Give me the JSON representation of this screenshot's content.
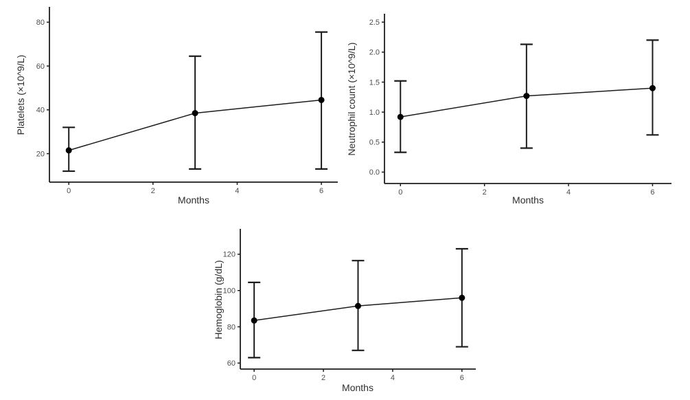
{
  "style": {
    "background": "#ffffff",
    "axis_color": "#1c1c1c",
    "line_color": "#1c1c1c",
    "errorbar_color": "#1c1c1c",
    "point_color": "#000000",
    "tick_label_color": "#4d4d4d",
    "axis_title_color": "#2e2e2e"
  },
  "chart_data": [
    {
      "id": "platelets",
      "type": "line",
      "title": "",
      "xlabel": "Months",
      "ylabel": "Platelets (×10^9/L)",
      "grid": false,
      "legend": "none",
      "errorbars": true,
      "x": [
        0,
        3,
        6
      ],
      "series": [
        {
          "name": "mean",
          "values": [
            21.5,
            38.5,
            44.5
          ]
        },
        {
          "name": "lower",
          "values": [
            12,
            13,
            13
          ]
        },
        {
          "name": "upper",
          "values": [
            32,
            64.5,
            75.5
          ]
        }
      ],
      "xticks": {
        "values": [
          0,
          2,
          4,
          6
        ],
        "labels": [
          "0",
          "2",
          "4",
          "6"
        ]
      },
      "yticks": {
        "values": [
          20,
          40,
          60,
          80
        ],
        "labels": [
          "20",
          "40",
          "60",
          "80"
        ]
      },
      "xlim": [
        -0.46,
        6.39
      ],
      "ylim": [
        7,
        87
      ]
    },
    {
      "id": "neutrophil-count",
      "type": "line",
      "title": "",
      "xlabel": "Months",
      "ylabel": "Neutrophil count (×10^9/L)",
      "grid": false,
      "legend": "none",
      "errorbars": true,
      "x": [
        0,
        3,
        6
      ],
      "series": [
        {
          "name": "mean",
          "values": [
            0.92,
            1.27,
            1.4
          ]
        },
        {
          "name": "lower",
          "values": [
            0.33,
            0.4,
            0.62
          ]
        },
        {
          "name": "upper",
          "values": [
            1.52,
            2.13,
            2.2
          ]
        }
      ],
      "xticks": {
        "values": [
          0,
          2,
          4,
          6
        ],
        "labels": [
          "0",
          "2",
          "4",
          "6"
        ]
      },
      "yticks": {
        "values": [
          0,
          0.5,
          1.0,
          1.5,
          2.0,
          2.5
        ],
        "labels": [
          "0.0",
          "0.5",
          "1.0",
          "1.5",
          "2.0",
          "2.5"
        ]
      },
      "xlim": [
        -0.38,
        6.45
      ],
      "ylim": [
        -0.19,
        2.64
      ]
    },
    {
      "id": "hemoglobin",
      "type": "line",
      "title": "",
      "xlabel": "Months",
      "ylabel": "Hemoglobin (g/dL)",
      "grid": false,
      "legend": "none",
      "errorbars": true,
      "x": [
        0,
        3,
        6
      ],
      "series": [
        {
          "name": "mean",
          "values": [
            83.5,
            91.5,
            96
          ]
        },
        {
          "name": "lower",
          "values": [
            63,
            67,
            69
          ]
        },
        {
          "name": "upper",
          "values": [
            104.5,
            116.5,
            123
          ]
        }
      ],
      "xticks": {
        "values": [
          0,
          2,
          4,
          6
        ],
        "labels": [
          "0",
          "2",
          "4",
          "6"
        ]
      },
      "yticks": {
        "values": [
          60,
          80,
          100,
          120
        ],
        "labels": [
          "60",
          "80",
          "100",
          "120"
        ]
      },
      "xlim": [
        -0.4,
        6.4
      ],
      "ylim": [
        56.7,
        134
      ]
    }
  ]
}
